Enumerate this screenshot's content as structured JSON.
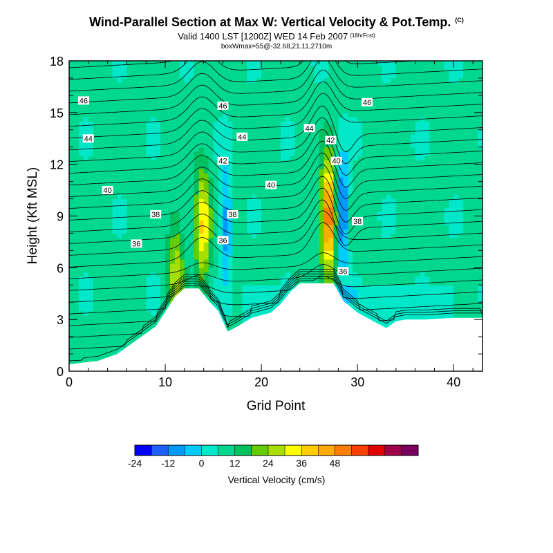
{
  "title": "Wind-Parallel Section at Max W: Vertical Velocity & Pot.Temp.",
  "title_mark": "(C)",
  "subtitle": "Valid 1400 LST [1200Z] WED 14 Feb 2007",
  "subtitle_note": "(18hrFcst)",
  "info_line": "boxWmax=55@-32.68,21.11,2710m",
  "colors": {
    "vv_palette": [
      "#0000ff",
      "#1f5fff",
      "#0099ff",
      "#00ccff",
      "#00e8c8",
      "#00d890",
      "#00c060",
      "#66cc00",
      "#aadd00",
      "#ffff00",
      "#ffcc00",
      "#ffaa00",
      "#ff8000",
      "#ff4000",
      "#e00000",
      "#a0004a",
      "#7a0060"
    ],
    "terrain": "#ffffff",
    "contour": "#000000"
  },
  "chart_data": {
    "type": "heatmap",
    "xlabel": "Grid Point",
    "ylabel": "Height (Kft MSL)",
    "xlim": [
      0,
      43
    ],
    "ylim": [
      0,
      18
    ],
    "x_ticks": [
      "0",
      "10",
      "20",
      "30",
      "40"
    ],
    "y_ticks": [
      "0",
      "3",
      "6",
      "9",
      "12",
      "15",
      "18"
    ],
    "colorbar": {
      "label": "Vertical Velocity (cm/s)",
      "tick_labels": [
        "-24",
        "-12",
        "0",
        "12",
        "24",
        "36",
        "48"
      ],
      "tick_values": [
        -24,
        -12,
        0,
        12,
        24,
        36,
        48
      ],
      "levels": [
        -24,
        -18,
        -12,
        -6,
        0,
        6,
        12,
        18,
        24,
        30,
        36,
        42,
        48,
        54
      ]
    },
    "terrain_height_kft": [
      [
        0,
        0.4
      ],
      [
        3,
        0.6
      ],
      [
        5,
        1.0
      ],
      [
        6,
        1.4
      ],
      [
        7,
        1.8
      ],
      [
        8,
        2.2
      ],
      [
        9,
        2.6
      ],
      [
        11,
        4.3
      ],
      [
        12,
        4.8
      ],
      [
        13.5,
        4.8
      ],
      [
        14.5,
        4.1
      ],
      [
        15.5,
        3.5
      ],
      [
        16.5,
        2.3
      ],
      [
        17.5,
        2.6
      ],
      [
        19,
        3.1
      ],
      [
        21,
        3.4
      ],
      [
        22,
        3.9
      ],
      [
        23,
        4.6
      ],
      [
        24,
        5.1
      ],
      [
        26,
        5.1
      ],
      [
        27.5,
        5.1
      ],
      [
        28.5,
        4.1
      ],
      [
        30,
        3.4
      ],
      [
        32,
        2.8
      ],
      [
        33,
        2.5
      ],
      [
        34,
        2.9
      ],
      [
        35,
        3.0
      ],
      [
        37,
        3.0
      ],
      [
        40,
        3.1
      ],
      [
        43,
        3.1
      ]
    ],
    "updrafts": [
      {
        "x": 13.9,
        "y": 8.5,
        "peak_cm_s": 30
      },
      {
        "x": 11.1,
        "y": 5.8,
        "peak_cm_s": 20
      },
      {
        "x": 27.0,
        "y": 9.0,
        "peak_cm_s": 48
      }
    ],
    "downdrafts": [
      {
        "x": 16.3,
        "y": 8.6,
        "min_cm_s": -18
      },
      {
        "x": 28.4,
        "y": 9.3,
        "min_cm_s": -24
      }
    ],
    "isentrope_labels": [
      {
        "text": "46",
        "x": 1.5,
        "y": 15.7
      },
      {
        "text": "46",
        "x": 16.0,
        "y": 15.4
      },
      {
        "text": "46",
        "x": 31.0,
        "y": 15.6
      },
      {
        "text": "44",
        "x": 2.0,
        "y": 13.5
      },
      {
        "text": "44",
        "x": 18.0,
        "y": 13.6
      },
      {
        "text": "44",
        "x": 25.0,
        "y": 14.1
      },
      {
        "text": "42",
        "x": 16.0,
        "y": 12.2
      },
      {
        "text": "42",
        "x": 27.2,
        "y": 13.4
      },
      {
        "text": "40",
        "x": 4.0,
        "y": 10.5
      },
      {
        "text": "40",
        "x": 21.0,
        "y": 10.8
      },
      {
        "text": "40",
        "x": 27.8,
        "y": 12.2
      },
      {
        "text": "38",
        "x": 9.0,
        "y": 9.1
      },
      {
        "text": "38",
        "x": 17.0,
        "y": 9.1
      },
      {
        "text": "38",
        "x": 30.0,
        "y": 8.7
      },
      {
        "text": "36",
        "x": 7.0,
        "y": 7.4
      },
      {
        "text": "36",
        "x": 16.0,
        "y": 7.6
      },
      {
        "text": "36",
        "x": 28.5,
        "y": 5.8
      }
    ]
  }
}
